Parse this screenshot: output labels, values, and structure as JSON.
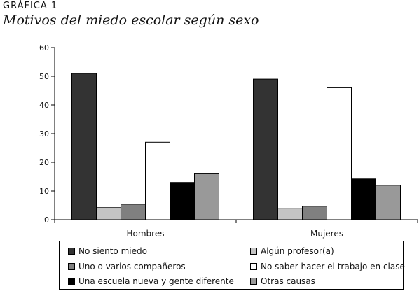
{
  "figure_label": "GRÁFICA 1",
  "figure_title": "Motivos del miedo escolar según sexo",
  "chart_data": {
    "type": "bar",
    "title": "Motivos del miedo escolar según sexo",
    "categories": [
      "Hombres",
      "Mujeres"
    ],
    "ylim": [
      0,
      60
    ],
    "yticks": [
      "0",
      "10",
      "20",
      "30",
      "40",
      "50",
      "60"
    ],
    "grid": false,
    "legend_position": "bottom",
    "series": [
      {
        "name": "No siento miedo",
        "color": "#333333",
        "values": [
          51,
          49
        ]
      },
      {
        "name": "Algún profesor(a)",
        "color": "#c4c4c4",
        "values": [
          4.2,
          4
        ]
      },
      {
        "name": "Uno o varios compañeros",
        "color": "#808080",
        "values": [
          5.4,
          4.7
        ]
      },
      {
        "name": "No saber hacer el trabajo en clase",
        "color": "#ffffff",
        "values": [
          27,
          46
        ]
      },
      {
        "name": "Una escuela nueva y gente diferente",
        "color": "#000000",
        "values": [
          13,
          14.2
        ]
      },
      {
        "name": "Otras causas",
        "color": "#999999",
        "values": [
          16,
          12
        ]
      }
    ]
  }
}
